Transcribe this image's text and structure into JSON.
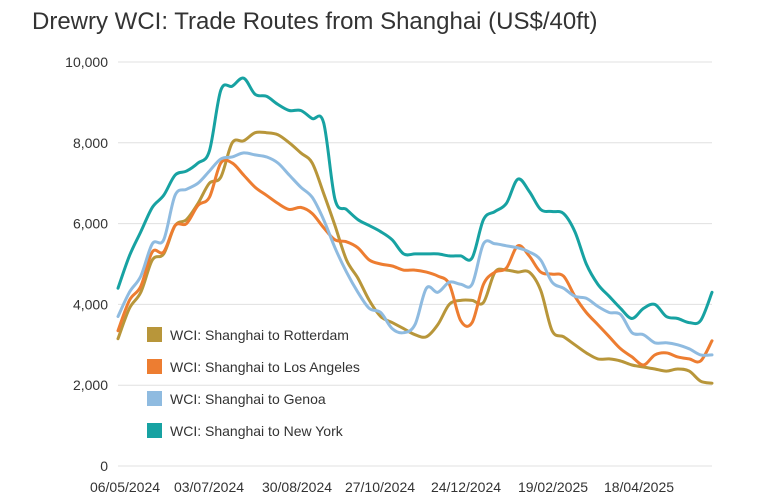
{
  "chart_data": {
    "type": "line",
    "title": "Drewry WCI: Trade Routes from Shanghai (US$/40ft)",
    "xlabel": "",
    "ylabel": "",
    "ylim": [
      0,
      10000
    ],
    "yticks": [
      "0",
      "2,000",
      "4,000",
      "6,000",
      "8,000",
      "10,000"
    ],
    "xticks": [
      "06/05/2024",
      "03/07/2024",
      "30/08/2024",
      "27/10/2024",
      "24/12/2024",
      "19/02/2025",
      "18/04/2025"
    ],
    "grid": true,
    "legend_position": "bottom-left",
    "x": [
      "06/05/2024",
      "13/05/2024",
      "20/05/2024",
      "27/05/2024",
      "03/06/2024",
      "10/06/2024",
      "17/06/2024",
      "24/06/2024",
      "01/07/2024",
      "08/07/2024",
      "15/07/2024",
      "22/07/2024",
      "29/07/2024",
      "05/08/2024",
      "12/08/2024",
      "19/08/2024",
      "26/08/2024",
      "02/09/2024",
      "09/09/2024",
      "16/09/2024",
      "23/09/2024",
      "30/09/2024",
      "07/10/2024",
      "14/10/2024",
      "21/10/2024",
      "28/10/2024",
      "04/11/2024",
      "11/11/2024",
      "18/11/2024",
      "25/11/2024",
      "02/12/2024",
      "09/12/2024",
      "16/12/2024",
      "23/12/2024",
      "30/12/2024",
      "06/01/2025",
      "13/01/2025",
      "20/01/2025",
      "27/01/2025",
      "03/02/2025",
      "10/02/2025",
      "17/02/2025",
      "24/02/2025",
      "03/03/2025",
      "10/03/2025",
      "17/03/2025",
      "24/03/2025",
      "31/03/2025",
      "07/04/2025",
      "14/04/2025",
      "21/04/2025",
      "28/04/2025",
      "05/05/2025"
    ],
    "series": [
      {
        "name": "WCI: Shanghai to Rotterdam",
        "color": "#b8963a",
        "values": [
          3150,
          3900,
          4300,
          5100,
          5250,
          5950,
          6100,
          6500,
          7000,
          7150,
          8000,
          8050,
          8250,
          8250,
          8200,
          8000,
          7750,
          7500,
          6750,
          5950,
          5100,
          4650,
          4100,
          3700,
          3550,
          3400,
          3250,
          3200,
          3500,
          4000,
          4100,
          4100,
          4050,
          4800,
          4850,
          4800,
          4800,
          4350,
          3350,
          3200,
          3000,
          2800,
          2650,
          2650,
          2600,
          2500,
          2450,
          2400,
          2350,
          2400,
          2350,
          2100,
          2050
        ]
      },
      {
        "name": "WCI: Shanghai to Los Angeles",
        "color": "#ed7d31",
        "values": [
          3350,
          4100,
          4450,
          5300,
          5300,
          5950,
          6000,
          6450,
          6650,
          7500,
          7500,
          7200,
          6900,
          6700,
          6500,
          6350,
          6400,
          6250,
          5900,
          5600,
          5550,
          5400,
          5100,
          5000,
          4950,
          4850,
          4850,
          4800,
          4700,
          4500,
          3600,
          3550,
          4500,
          4800,
          4900,
          5450,
          5200,
          4800,
          4750,
          4700,
          4200,
          3800,
          3500,
          3200,
          2900,
          2700,
          2500,
          2750,
          2800,
          2700,
          2650,
          2600,
          3100
        ]
      },
      {
        "name": "WCI: Shanghai to Genoa",
        "color": "#8fbbe0",
        "values": [
          3700,
          4300,
          4700,
          5500,
          5600,
          6700,
          6850,
          7000,
          7300,
          7600,
          7650,
          7750,
          7700,
          7650,
          7500,
          7200,
          6900,
          6650,
          6100,
          5400,
          4800,
          4300,
          3900,
          3800,
          3400,
          3300,
          3500,
          4400,
          4300,
          4550,
          4500,
          4500,
          5500,
          5500,
          5450,
          5400,
          5300,
          5100,
          4550,
          4400,
          4200,
          4150,
          3950,
          3800,
          3750,
          3300,
          3250,
          3050,
          3050,
          3000,
          2900,
          2750,
          2750
        ]
      },
      {
        "name": "WCI: Shanghai to New York",
        "color": "#17a2a2",
        "values": [
          4400,
          5200,
          5800,
          6400,
          6700,
          7200,
          7300,
          7500,
          7800,
          9300,
          9400,
          9600,
          9200,
          9150,
          8950,
          8800,
          8800,
          8600,
          8500,
          6600,
          6350,
          6100,
          5950,
          5800,
          5600,
          5250,
          5250,
          5250,
          5250,
          5200,
          5200,
          5150,
          6100,
          6300,
          6500,
          7100,
          6800,
          6350,
          6300,
          6250,
          5800,
          5000,
          4500,
          4200,
          3900,
          3650,
          3900,
          4000,
          3700,
          3650,
          3550,
          3600,
          4300
        ]
      }
    ]
  }
}
